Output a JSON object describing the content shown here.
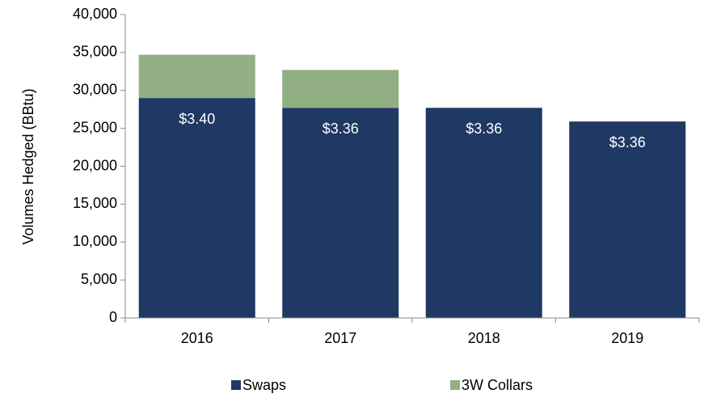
{
  "chart_data": {
    "type": "stacked_bar",
    "y_axis_label": "Volumes Hedged (BBtu)",
    "categories": [
      "2016",
      "2017",
      "2018",
      "2019"
    ],
    "series": [
      {
        "name": "Swaps",
        "color": "#1f3864",
        "values": [
          29000,
          27700,
          27700,
          25900
        ]
      },
      {
        "name": "3W Collars",
        "color": "#92ae83",
        "values": [
          5700,
          5000,
          0,
          0
        ]
      }
    ],
    "annotations": [
      "$3.40",
      "$3.36",
      "$3.36",
      "$3.36"
    ],
    "ylim": [
      0,
      40000
    ],
    "yticks": [
      0,
      {
        "value": 5000,
        "label": "5,000"
      },
      {
        "value": 10000,
        "label": "10,000"
      },
      {
        "value": 15000,
        "label": "15,000"
      },
      {
        "value": 20000,
        "label": "20,000"
      },
      {
        "value": 25000,
        "label": "25,000"
      },
      {
        "value": 30000,
        "label": "30,000"
      },
      {
        "value": 35000,
        "label": "35,000"
      },
      {
        "value": 40000,
        "label": "40,000"
      }
    ],
    "legend": "bottom"
  }
}
